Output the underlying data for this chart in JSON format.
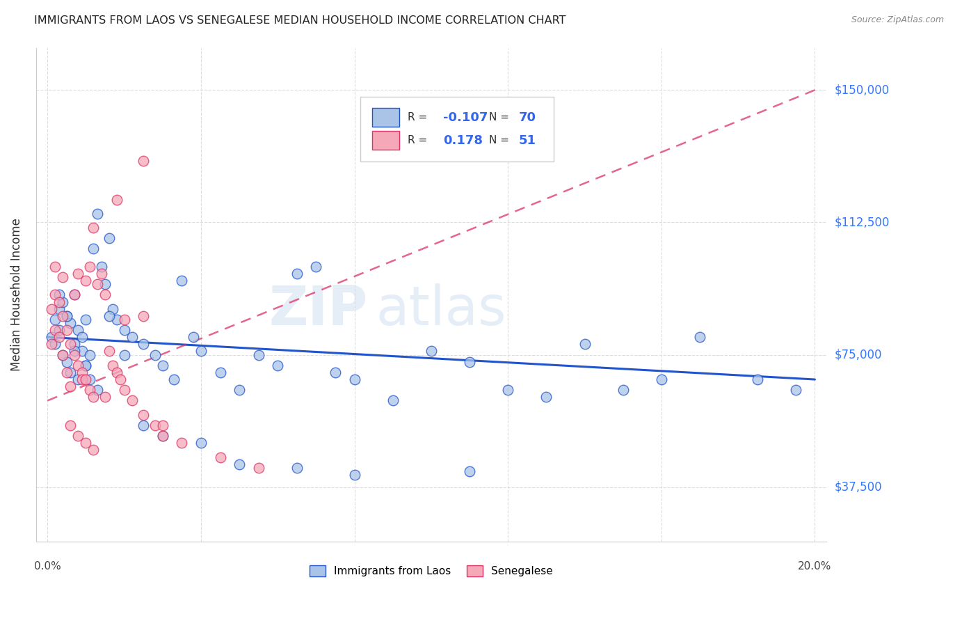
{
  "title": "IMMIGRANTS FROM LAOS VS SENEGALESE MEDIAN HOUSEHOLD INCOME CORRELATION CHART",
  "source": "Source: ZipAtlas.com",
  "ylabel": "Median Household Income",
  "yticks": [
    37500,
    75000,
    112500,
    150000
  ],
  "ytick_labels": [
    "$37,500",
    "$75,000",
    "$112,500",
    "$150,000"
  ],
  "xlim": [
    0.0,
    0.2
  ],
  "ylim": [
    22000,
    162000
  ],
  "color_laos": "#aac4e8",
  "color_senegal": "#f5a8b8",
  "line_color_laos": "#2255cc",
  "line_color_senegal": "#dd3366",
  "watermark_zip": "ZIP",
  "watermark_atlas": "atlas",
  "background_color": "#ffffff",
  "laos_x": [
    0.001,
    0.002,
    0.002,
    0.003,
    0.003,
    0.004,
    0.004,
    0.005,
    0.005,
    0.006,
    0.006,
    0.007,
    0.007,
    0.008,
    0.008,
    0.009,
    0.009,
    0.01,
    0.01,
    0.011,
    0.011,
    0.012,
    0.013,
    0.014,
    0.015,
    0.016,
    0.017,
    0.018,
    0.02,
    0.022,
    0.025,
    0.028,
    0.03,
    0.033,
    0.035,
    0.038,
    0.04,
    0.045,
    0.05,
    0.055,
    0.06,
    0.065,
    0.07,
    0.075,
    0.08,
    0.09,
    0.1,
    0.11,
    0.12,
    0.13,
    0.14,
    0.15,
    0.16,
    0.17,
    0.185,
    0.195,
    0.003,
    0.005,
    0.007,
    0.01,
    0.013,
    0.016,
    0.02,
    0.025,
    0.03,
    0.04,
    0.05,
    0.065,
    0.08,
    0.11
  ],
  "laos_y": [
    80000,
    85000,
    78000,
    82000,
    88000,
    75000,
    90000,
    86000,
    73000,
    84000,
    70000,
    78000,
    92000,
    82000,
    68000,
    76000,
    80000,
    72000,
    85000,
    68000,
    75000,
    105000,
    115000,
    100000,
    95000,
    108000,
    88000,
    85000,
    82000,
    80000,
    78000,
    75000,
    72000,
    68000,
    96000,
    80000,
    76000,
    70000,
    65000,
    75000,
    72000,
    98000,
    100000,
    70000,
    68000,
    62000,
    76000,
    73000,
    65000,
    63000,
    78000,
    65000,
    68000,
    80000,
    68000,
    65000,
    92000,
    86000,
    76000,
    72000,
    65000,
    86000,
    75000,
    55000,
    52000,
    50000,
    44000,
    43000,
    41000,
    42000
  ],
  "senegal_x": [
    0.001,
    0.001,
    0.002,
    0.002,
    0.003,
    0.003,
    0.004,
    0.004,
    0.005,
    0.005,
    0.006,
    0.006,
    0.007,
    0.007,
    0.008,
    0.008,
    0.009,
    0.009,
    0.01,
    0.01,
    0.011,
    0.011,
    0.012,
    0.013,
    0.014,
    0.015,
    0.016,
    0.017,
    0.018,
    0.019,
    0.02,
    0.022,
    0.025,
    0.028,
    0.03,
    0.002,
    0.004,
    0.006,
    0.008,
    0.01,
    0.012,
    0.015,
    0.02,
    0.025,
    0.03,
    0.035,
    0.045,
    0.055,
    0.012,
    0.018,
    0.025
  ],
  "senegal_y": [
    88000,
    78000,
    92000,
    82000,
    90000,
    80000,
    86000,
    75000,
    82000,
    70000,
    78000,
    66000,
    75000,
    92000,
    72000,
    98000,
    70000,
    68000,
    68000,
    96000,
    65000,
    100000,
    63000,
    95000,
    98000,
    92000,
    76000,
    72000,
    70000,
    68000,
    65000,
    62000,
    86000,
    55000,
    52000,
    100000,
    97000,
    55000,
    52000,
    50000,
    48000,
    63000,
    85000,
    58000,
    55000,
    50000,
    46000,
    43000,
    111000,
    119000,
    130000
  ],
  "laos_line_x0": 0.0,
  "laos_line_x1": 0.2,
  "laos_line_y0": 80000,
  "laos_line_y1": 68000,
  "senegal_line_x0": 0.0,
  "senegal_line_x1": 0.2,
  "senegal_line_y0": 62000,
  "senegal_line_y1": 150000
}
